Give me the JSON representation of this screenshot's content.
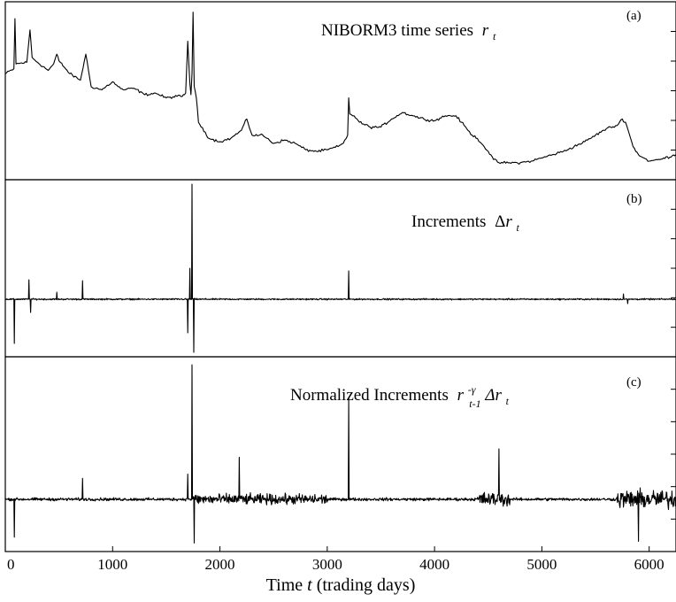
{
  "chart_data": [
    {
      "type": "line",
      "panel_label": "(a)",
      "title": "NIBORM3 time series",
      "title_var": "r",
      "title_sub": "t",
      "xlim": [
        0,
        6250
      ],
      "x": [
        0,
        80,
        90,
        100,
        200,
        230,
        250,
        300,
        400,
        450,
        480,
        500,
        600,
        700,
        750,
        800,
        900,
        1000,
        1050,
        1100,
        1200,
        1300,
        1400,
        1500,
        1600,
        1650,
        1680,
        1700,
        1720,
        1730,
        1740,
        1750,
        1760,
        1780,
        1800,
        1900,
        2000,
        2100,
        2200,
        2250,
        2300,
        2400,
        2500,
        2600,
        2700,
        2800,
        2900,
        3000,
        3100,
        3150,
        3190,
        3200,
        3210,
        3250,
        3300,
        3400,
        3500,
        3600,
        3700,
        3800,
        3900,
        4000,
        4100,
        4200,
        4250,
        4300,
        4350,
        4400,
        4450,
        4500,
        4550,
        4600,
        4700,
        4800,
        4900,
        5000,
        5100,
        5200,
        5300,
        5400,
        5500,
        5600,
        5700,
        5750,
        5780,
        5800,
        5850,
        5900,
        5950,
        6000,
        6100,
        6250
      ],
      "y": [
        0.6,
        0.63,
        0.94,
        0.66,
        0.67,
        0.87,
        0.7,
        0.67,
        0.62,
        0.66,
        0.72,
        0.68,
        0.6,
        0.56,
        0.72,
        0.52,
        0.5,
        0.55,
        0.52,
        0.5,
        0.51,
        0.47,
        0.48,
        0.45,
        0.46,
        0.46,
        0.48,
        0.8,
        0.54,
        0.47,
        0.6,
        0.98,
        0.52,
        0.45,
        0.3,
        0.2,
        0.18,
        0.2,
        0.25,
        0.32,
        0.22,
        0.22,
        0.17,
        0.19,
        0.17,
        0.13,
        0.12,
        0.13,
        0.15,
        0.17,
        0.22,
        0.45,
        0.35,
        0.34,
        0.3,
        0.27,
        0.27,
        0.32,
        0.36,
        0.34,
        0.32,
        0.31,
        0.34,
        0.34,
        0.3,
        0.26,
        0.22,
        0.2,
        0.16,
        0.12,
        0.07,
        0.05,
        0.05,
        0.05,
        0.06,
        0.08,
        0.1,
        0.12,
        0.15,
        0.18,
        0.22,
        0.26,
        0.28,
        0.32,
        0.3,
        0.26,
        0.15,
        0.1,
        0.08,
        0.06,
        0.07,
        0.1
      ]
    },
    {
      "type": "line",
      "panel_label": "(b)",
      "title": "Increments",
      "title_prefix": "Δ",
      "title_var": "r",
      "title_sub": "t",
      "xlim": [
        0,
        6250
      ],
      "baseline": 0.0,
      "noise_scale": 0.012,
      "spikes": [
        {
          "x": 70,
          "y": 0.3
        },
        {
          "x": 85,
          "y": -0.5
        },
        {
          "x": 220,
          "y": 0.22
        },
        {
          "x": 235,
          "y": -0.15
        },
        {
          "x": 480,
          "y": 0.08
        },
        {
          "x": 720,
          "y": 0.21
        },
        {
          "x": 1690,
          "y": 0.43
        },
        {
          "x": 1700,
          "y": -0.38
        },
        {
          "x": 1720,
          "y": 0.35
        },
        {
          "x": 1740,
          "y": 1.3
        },
        {
          "x": 1755,
          "y": -0.6
        },
        {
          "x": 3200,
          "y": 0.32
        },
        {
          "x": 3210,
          "y": -0.18
        },
        {
          "x": 5760,
          "y": 0.06
        },
        {
          "x": 5800,
          "y": -0.05
        }
      ]
    },
    {
      "type": "line",
      "panel_label": "(c)",
      "title": "Normalized Increments",
      "title_var": "r",
      "title_sub": "t-1",
      "title_sup": "-γ",
      "title_tail": "Δr",
      "title_tail_sub": "t",
      "xlim": [
        0,
        6250
      ],
      "xlabel_prefix": "Time ",
      "xlabel_var": "t",
      "xlabel_suffix": " (trading days)",
      "xticks": [
        "0",
        "1000",
        "2000",
        "3000",
        "4000",
        "5000",
        "6000"
      ],
      "xtick_values": [
        0,
        1000,
        2000,
        3000,
        4000,
        5000,
        6000
      ],
      "baseline": 0.0,
      "noise_scale": 0.025,
      "spikes": [
        {
          "x": 70,
          "y": 0.35
        },
        {
          "x": 85,
          "y": -0.45
        },
        {
          "x": 230,
          "y": 0.2
        },
        {
          "x": 720,
          "y": 0.25
        },
        {
          "x": 1700,
          "y": 0.3
        },
        {
          "x": 1710,
          "y": -0.35
        },
        {
          "x": 1740,
          "y": 1.6
        },
        {
          "x": 1760,
          "y": -0.52
        },
        {
          "x": 2180,
          "y": 0.5
        },
        {
          "x": 2350,
          "y": 0.3
        },
        {
          "x": 2750,
          "y": -0.3
        },
        {
          "x": 3200,
          "y": 1.2
        },
        {
          "x": 4550,
          "y": -0.45
        },
        {
          "x": 4600,
          "y": 0.6
        },
        {
          "x": 5750,
          "y": 0.45
        },
        {
          "x": 5900,
          "y": -0.5
        }
      ],
      "noisy_ranges": [
        {
          "x0": 1750,
          "x1": 3000,
          "scale": 0.09
        },
        {
          "x0": 4400,
          "x1": 4700,
          "scale": 0.12
        },
        {
          "x0": 5700,
          "x1": 6250,
          "scale": 0.16
        }
      ]
    }
  ]
}
